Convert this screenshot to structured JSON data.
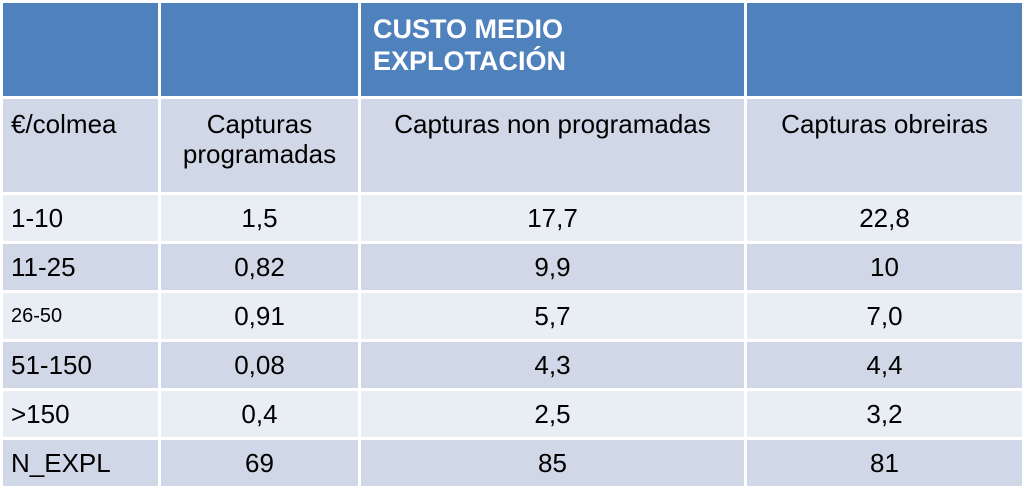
{
  "table": {
    "header_title_line1": "CUSTO MEDIO",
    "header_title_line2": "EXPLOTACIÓN",
    "columns": [
      "€/colmea",
      "Capturas programadas",
      "Capturas non programadas",
      "Capturas obreiras"
    ],
    "rows": [
      {
        "label": "1-10",
        "values": [
          "1,5",
          "17,7",
          "22,8"
        ]
      },
      {
        "label": "11-25",
        "values": [
          "0,82",
          "9,9",
          "10"
        ]
      },
      {
        "label": "26-50",
        "values": [
          "0,91",
          "5,7",
          "7,0"
        ]
      },
      {
        "label": "51-150",
        "values": [
          "0,08",
          "4,3",
          "4,4"
        ]
      },
      {
        "label": ">150",
        "values": [
          "0,4",
          "2,5",
          "3,2"
        ]
      },
      {
        "label": "N_EXPL",
        "values": [
          "69",
          "85",
          "81"
        ]
      }
    ]
  },
  "colors": {
    "header_bg": "#4f81bd",
    "row_light": "#e9edf4",
    "row_dark": "#d0d8e8",
    "header_text": "#ffffff"
  }
}
